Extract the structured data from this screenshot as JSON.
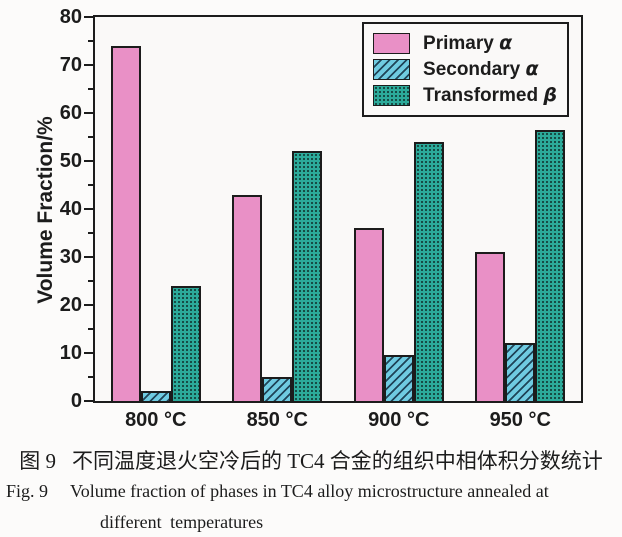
{
  "colors": {
    "background": "#fcfbfa",
    "plot_background": "#faf9f8",
    "axis": "#1c1c1c",
    "text": "#1c1c1c"
  },
  "figure": {
    "caption_zh_label": "图 9",
    "caption_zh_text": "不同温度退火空冷后的 TC4 合金的组织中相体积分数统计",
    "caption_en_label": "Fig. 9",
    "caption_en_line1": "Volume fraction of phases in TC4 alloy microstructure annealed at",
    "caption_en_line2": "different temperatures"
  },
  "chart_data": {
    "type": "bar",
    "title": "",
    "xlabel": "",
    "ylabel": "Volume Fraction/%",
    "ylim": [
      0,
      80
    ],
    "yticks": [
      0,
      10,
      20,
      30,
      40,
      50,
      60,
      70,
      80
    ],
    "minor_tick_step": 5,
    "grid": false,
    "legend_position": "top-right-inside",
    "categories": [
      "800 °C",
      "850 °C",
      "900 °C",
      "950 °C"
    ],
    "series": [
      {
        "name": "Primary",
        "symbol": "α",
        "pattern": "solid",
        "color": "#e990c6",
        "pattern_color": "#1c1c1c",
        "values": [
          74,
          43,
          36,
          31
        ]
      },
      {
        "name": "Secondary",
        "symbol": "α",
        "pattern": "hatch",
        "color": "#6fcbe1",
        "pattern_color": "#1f4458",
        "values": [
          2,
          5,
          9.5,
          12
        ]
      },
      {
        "name": "Transformed",
        "symbol": "β",
        "pattern": "dots",
        "color": "#2caa9a",
        "pattern_color": "#14443e",
        "values": [
          24,
          52,
          54,
          56.5
        ]
      }
    ]
  }
}
